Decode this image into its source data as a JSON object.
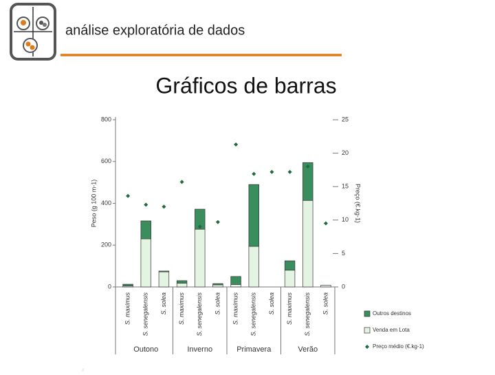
{
  "header": {
    "title": "análise exploratória de dados"
  },
  "slide_title": "Gráficos de barras",
  "chart_data": {
    "type": "bar",
    "stacked": true,
    "categories": [
      "S. maximus",
      "S. senegalensis",
      "S. solea",
      "S. maximus",
      "S. senegalensis",
      "S. solea",
      "S. maximus",
      "S. senegalensis",
      "S. solea",
      "S. maximus",
      "S. senegalensis",
      "S. solea"
    ],
    "groups": [
      "Outono",
      "Inverno",
      "Primavera",
      "Verão"
    ],
    "y_label": "Peso (g 100 m-1)",
    "y2_label": "Preço (€.kg-1)",
    "ylim": [
      0,
      800
    ],
    "yticks": [
      0,
      200,
      400,
      600,
      800
    ],
    "y2lim": [
      0,
      25
    ],
    "y2ticks": [
      0,
      5,
      10,
      15,
      20,
      25
    ],
    "series": [
      {
        "name": "Venda em Lota",
        "color": "#e4f4e2",
        "values": [
          5,
          230,
          72,
          18,
          276,
          10,
          12,
          194,
          0,
          80,
          414,
          8
        ]
      },
      {
        "name": "Outros destinos",
        "color": "#3a8d5c",
        "values": [
          8,
          86,
          4,
          12,
          96,
          6,
          38,
          296,
          0,
          45,
          181,
          0
        ]
      },
      {
        "name": "Preço médio (€.kg-1)",
        "color": "#1f6a3e",
        "type": "scatter",
        "axis": "y2",
        "values": [
          13.6,
          12.3,
          12.0,
          15.7,
          9.0,
          9.7,
          21.3,
          16.9,
          17.2,
          17.2,
          18.0,
          9.5
        ]
      }
    ]
  }
}
